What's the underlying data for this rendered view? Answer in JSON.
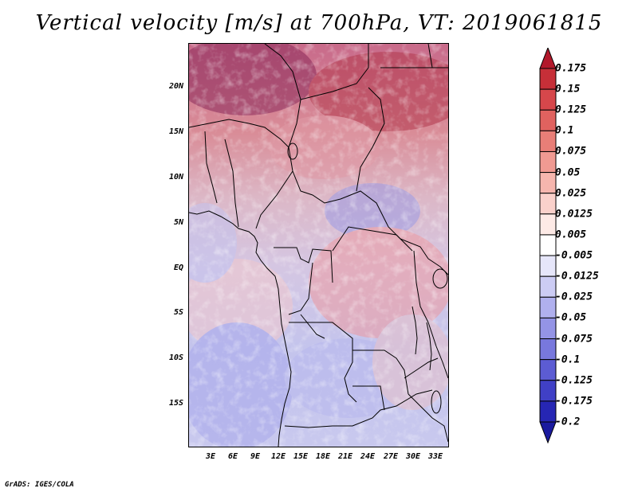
{
  "title": "Vertical velocity [m/s] at 700hPa, VT: 2019061815",
  "credit": "GrADS: IGES/COLA",
  "y_axis_labels": [
    "20N",
    "15N",
    "10N",
    "5N",
    "EQ",
    "5S",
    "10S",
    "15S"
  ],
  "x_axis_labels": [
    "3E",
    "6E",
    "9E",
    "12E",
    "15E",
    "18E",
    "21E",
    "24E",
    "27E",
    "30E",
    "33E"
  ],
  "colorbar": {
    "labels": [
      "0.175",
      "0.15",
      "0.125",
      "0.1",
      "0.075",
      "0.05",
      "0.025",
      "0.0125",
      "0.005",
      "-0.005",
      "-0.0125",
      "-0.025",
      "-0.05",
      "-0.075",
      "-0.1",
      "-0.125",
      "-0.175",
      "-0.2"
    ],
    "colors": [
      "#b2182b",
      "#c62f38",
      "#d6474b",
      "#e0625f",
      "#e87e77",
      "#f09a92",
      "#f6b6ae",
      "#fad1cb",
      "#fdeae6",
      "#ffffff",
      "#e6e6fa",
      "#ccccf4",
      "#b0b0ee",
      "#9494e6",
      "#7878dd",
      "#5c5cd3",
      "#4040c6",
      "#2626b4",
      "#1a1a9e"
    ]
  }
}
